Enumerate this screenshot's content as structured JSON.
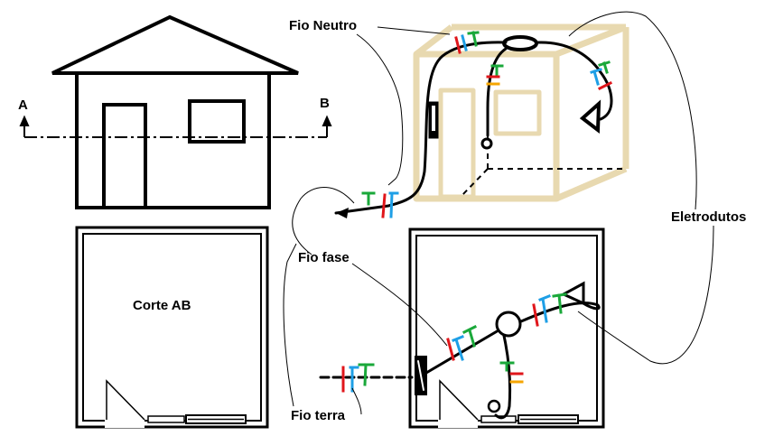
{
  "labels": {
    "section_a": "A",
    "section_b": "B",
    "section_title": "Corte AB",
    "neutral_wire": "Fio Neutro",
    "phase_wire": "Fio fase",
    "ground_wire": "Fio terra",
    "conduits": "Eletrodutos"
  },
  "colors": {
    "outline": "#000000",
    "room_3d": "#e8d9b0",
    "phase": "#e0161b",
    "neutral": "#1e9fe6",
    "ground": "#1aa83a",
    "return": "#f5a500"
  }
}
